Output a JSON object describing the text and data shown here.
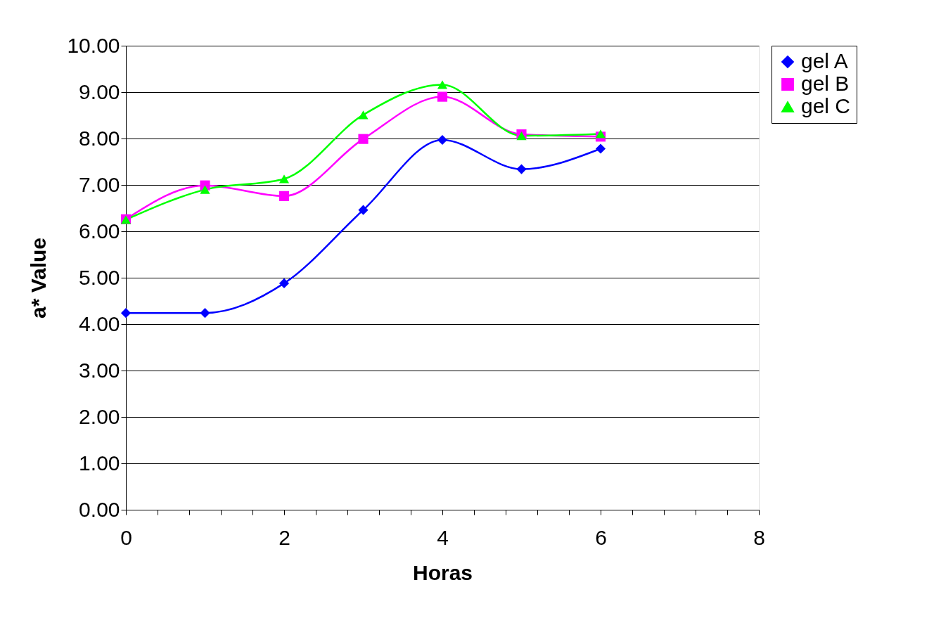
{
  "chart_data": {
    "type": "line",
    "xlabel": "Horas",
    "ylabel": "a* Value",
    "x": [
      0,
      1,
      2,
      3,
      4,
      5,
      6
    ],
    "series": [
      {
        "name": "gel A",
        "color": "#0000ff",
        "marker": "diamond",
        "values": [
          4.24,
          4.24,
          4.88,
          6.46,
          7.97,
          7.34,
          7.78
        ]
      },
      {
        "name": "gel B",
        "color": "#ff00ff",
        "marker": "square",
        "values": [
          6.26,
          6.99,
          6.76,
          7.99,
          8.9,
          8.09,
          8.04
        ]
      },
      {
        "name": "gel C",
        "color": "#00ff00",
        "marker": "triangle",
        "values": [
          6.25,
          6.9,
          7.13,
          8.51,
          9.16,
          8.06,
          8.1
        ]
      }
    ],
    "xlim": [
      0,
      8
    ],
    "xticks": [
      0,
      {
        "value": 0.4,
        "label": null
      },
      {
        "value": 0.8,
        "label": null
      },
      {
        "value": 1.2,
        "label": null
      },
      {
        "value": 1.6,
        "label": null
      },
      2,
      {
        "value": 2.4,
        "label": null
      },
      {
        "value": 2.8,
        "label": null
      },
      {
        "value": 3.2,
        "label": null
      },
      {
        "value": 3.6,
        "label": null
      },
      4,
      {
        "value": 4.4,
        "label": null
      },
      {
        "value": 4.8,
        "label": null
      },
      {
        "value": 5.2,
        "label": null
      },
      {
        "value": 5.6,
        "label": null
      },
      6,
      {
        "value": 6.4,
        "label": null
      },
      {
        "value": 6.8,
        "label": null
      },
      {
        "value": 7.2,
        "label": null
      },
      {
        "value": 7.6,
        "label": null
      },
      8
    ],
    "ylim": [
      0,
      10
    ],
    "yticks": [
      {
        "value": 0,
        "label": "0.00"
      },
      {
        "value": 1,
        "label": "1.00"
      },
      {
        "value": 2,
        "label": "2.00"
      },
      {
        "value": 3,
        "label": "3.00"
      },
      {
        "value": 4,
        "label": "4.00"
      },
      {
        "value": 5,
        "label": "5.00"
      },
      {
        "value": 6,
        "label": "6.00"
      },
      {
        "value": 7,
        "label": "7.00"
      },
      {
        "value": 8,
        "label": "8.00"
      },
      {
        "value": 9,
        "label": "9.00"
      },
      {
        "value": 10,
        "label": "10.00"
      }
    ],
    "grid": "y",
    "legend": "right",
    "line_style": "solid"
  }
}
